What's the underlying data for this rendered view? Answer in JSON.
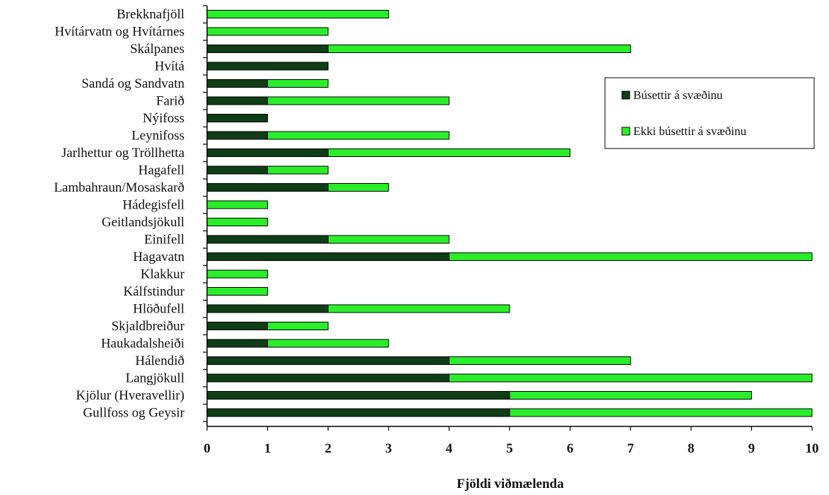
{
  "chart_data": {
    "type": "bar",
    "orientation": "horizontal",
    "stacked": true,
    "categories": [
      "Brekknafjöll",
      "Hvítárvatn og Hvítárnes",
      "Skálpanes",
      "Hvítá",
      "Sandá og Sandvatn",
      "Farið",
      "Nýifoss",
      "Leynifoss",
      "Jarlhettur og Tröllhetta",
      "Hagafell",
      "Lambahraun/Mosaskarð",
      "Hádegisfell",
      "Geitlandsjökull",
      "Einifell",
      "Hagavatn",
      "Klakkur",
      "Kálfstindur",
      "Hlöðufell",
      "Skjaldbreiður",
      "Haukadalsheiði",
      "Hálendið",
      "Langjökull",
      "Kjölur (Hveravellir)",
      "Gullfoss og Geysir"
    ],
    "series": [
      {
        "name": "Búsettir á svæðinu",
        "color": "#0f3d16",
        "values": [
          0,
          0,
          2,
          2,
          1,
          1,
          1,
          1,
          2,
          1,
          2,
          0,
          0,
          2,
          4,
          0,
          0,
          2,
          1,
          1,
          4,
          4,
          5,
          5
        ]
      },
      {
        "name": "Ekki búsettir á svæðinu",
        "color": "#2aee2a",
        "values": [
          3,
          2,
          5,
          0,
          1,
          3,
          0,
          3,
          4,
          1,
          1,
          1,
          1,
          2,
          6,
          1,
          1,
          3,
          1,
          2,
          3,
          6,
          4,
          5
        ]
      }
    ],
    "xlim": [
      0,
      10
    ],
    "xticks": [
      0,
      1,
      2,
      3,
      4,
      5,
      6,
      7,
      8,
      9,
      10
    ],
    "xlabel": "Fjöldi viðmælenda",
    "ylabel": "",
    "title": "",
    "grid": false,
    "legend_position": "right"
  }
}
